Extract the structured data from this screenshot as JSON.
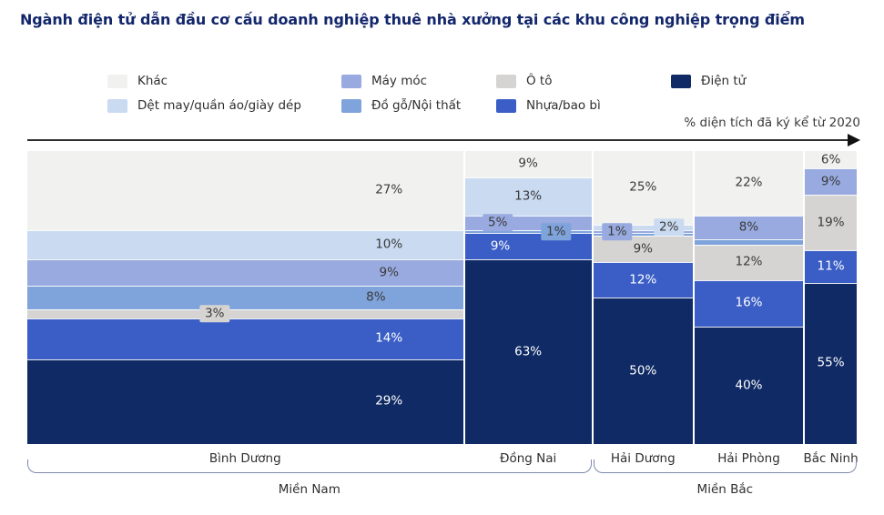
{
  "title": "Ngành điện tử dẫn đầu cơ cấu doanh nghiệp thuê nhà xưởng tại các khu công nghiệp trọng điểm",
  "axis_label": "% diện tích đã ký kể từ 2020",
  "colors": {
    "khac": "#f1f1ef",
    "det_may": "#c9daf1",
    "may_moc": "#98aadf",
    "do_go": "#7fa3db",
    "o_to": "#d5d4d2",
    "nhua": "#3a5ec6",
    "dien_tu": "#0f2a64",
    "title_text": "#12266b",
    "bracket": "#7d8aac",
    "dark_text": "#3a3a3a"
  },
  "legend": {
    "items": [
      {
        "id": "khac",
        "label": "Khác"
      },
      {
        "id": "det_may",
        "label": "Dệt may/quần áo/giày dép"
      },
      {
        "id": "may_moc",
        "label": "Máy móc"
      },
      {
        "id": "do_go",
        "label": "Đồ gỗ/Nội thất"
      },
      {
        "id": "o_to",
        "label": "Ô tô"
      },
      {
        "id": "nhua",
        "label": "Nhựa/bao bì"
      },
      {
        "id": "dien_tu",
        "label": "Điện tử"
      }
    ]
  },
  "chart_data": {
    "type": "mekko",
    "title": "Ngành điện tử dẫn đầu cơ cấu doanh nghiệp thuê nhà xưởng tại các khu công nghiệp trọng điểm",
    "unit": "% diện tích đã ký kể từ 2020",
    "segment_order": [
      "Khác",
      "Dệt may/quần áo/giày dép",
      "Máy móc",
      "Đồ gỗ/Nội thất",
      "Ô tô",
      "Nhựa/bao bì",
      "Điện tử"
    ],
    "columns": [
      {
        "id": "binh-duong",
        "name": "Bình Dương",
        "group": "Miền Nam",
        "width_pct": 53,
        "segments": [
          {
            "industry": "khac",
            "value": 27,
            "label": "27%",
            "label_x_pct": 83
          },
          {
            "industry": "det_may",
            "value": 10,
            "label": "10%",
            "label_x_pct": 83
          },
          {
            "industry": "may_moc",
            "value": 9,
            "label": "9%",
            "label_x_pct": 83
          },
          {
            "industry": "do_go",
            "value": 8,
            "label": "8%",
            "label_x_pct": 80
          },
          {
            "industry": "o_to",
            "value": 3,
            "label": "3%",
            "label_x_pct": 43,
            "callout": true
          },
          {
            "industry": "nhua",
            "value": 14,
            "label": "14%",
            "label_x_pct": 83
          },
          {
            "industry": "dien_tu",
            "value": 29,
            "label": "29%",
            "label_x_pct": 83
          }
        ]
      },
      {
        "id": "dong-nai",
        "name": "Đồng Nai",
        "group": "Miền Nam",
        "width_pct": 15.4,
        "segments": [
          {
            "industry": "khac",
            "value": 9,
            "label": "9%",
            "label_x_pct": 50
          },
          {
            "industry": "det_may",
            "value": 13,
            "label": "13%",
            "label_x_pct": 50
          },
          {
            "industry": "may_moc",
            "value": 5,
            "label": "5%",
            "label_x_pct": 26,
            "callout": true
          },
          {
            "industry": "do_go",
            "value": 1,
            "label": "1%",
            "label_x_pct": 72,
            "callout": true
          },
          {
            "industry": "nhua",
            "value": 9,
            "label": "9%",
            "label_x_pct": 28
          },
          {
            "industry": "dien_tu",
            "value": 63,
            "label": "63%",
            "label_x_pct": 50
          }
        ]
      },
      {
        "id": "hai-duong",
        "name": "Hải Dương",
        "group": "Miền Bắc",
        "width_pct": 12.1,
        "segments": [
          {
            "industry": "khac",
            "value": 25,
            "label": "25%",
            "label_x_pct": 50
          },
          {
            "industry": "det_may",
            "value": 2,
            "label": "2%",
            "label_x_pct": 76,
            "callout": true
          },
          {
            "industry": "may_moc",
            "value": 1,
            "label": "1%",
            "label_x_pct": 24,
            "callout": true
          },
          {
            "industry": "do_go",
            "value": 1,
            "label": ""
          },
          {
            "industry": "o_to",
            "value": 9,
            "label": "9%",
            "label_x_pct": 50
          },
          {
            "industry": "nhua",
            "value": 12,
            "label": "12%",
            "label_x_pct": 50
          },
          {
            "industry": "dien_tu",
            "value": 50,
            "label": "50%",
            "label_x_pct": 50
          }
        ]
      },
      {
        "id": "hai-phong",
        "name": "Hải Phòng",
        "group": "Miền Bắc",
        "width_pct": 13.2,
        "segments": [
          {
            "industry": "khac",
            "value": 22,
            "label": "22%",
            "label_x_pct": 50
          },
          {
            "industry": "may_moc",
            "value": 8,
            "label": "8%",
            "label_x_pct": 50
          },
          {
            "industry": "do_go",
            "value": 2,
            "label": ""
          },
          {
            "industry": "o_to",
            "value": 12,
            "label": "12%",
            "label_x_pct": 50
          },
          {
            "industry": "nhua",
            "value": 16,
            "label": "16%",
            "label_x_pct": 50
          },
          {
            "industry": "dien_tu",
            "value": 40,
            "label": "40%",
            "label_x_pct": 50
          }
        ]
      },
      {
        "id": "bac-ninh",
        "name": "Bắc Ninh",
        "group": "Miền Bắc",
        "width_pct": 6.3,
        "segments": [
          {
            "industry": "khac",
            "value": 6,
            "label": "6%",
            "label_x_pct": 50
          },
          {
            "industry": "may_moc",
            "value": 9,
            "label": "9%",
            "label_x_pct": 50
          },
          {
            "industry": "o_to",
            "value": 19,
            "label": "19%",
            "label_x_pct": 50
          },
          {
            "industry": "nhua",
            "value": 11,
            "label": "11%",
            "label_x_pct": 50
          },
          {
            "industry": "dien_tu",
            "value": 55,
            "label": "55%",
            "label_x_pct": 50
          }
        ]
      }
    ],
    "groups": [
      {
        "id": "mien-nam",
        "label": "Miền Nam",
        "columns": [
          "Bình Dương",
          "Đồng Nai"
        ]
      },
      {
        "id": "mien-bac",
        "label": "Miền Bắc",
        "columns": [
          "Hải Dương",
          "Hải Phòng",
          "Bắc Ninh"
        ]
      }
    ]
  }
}
